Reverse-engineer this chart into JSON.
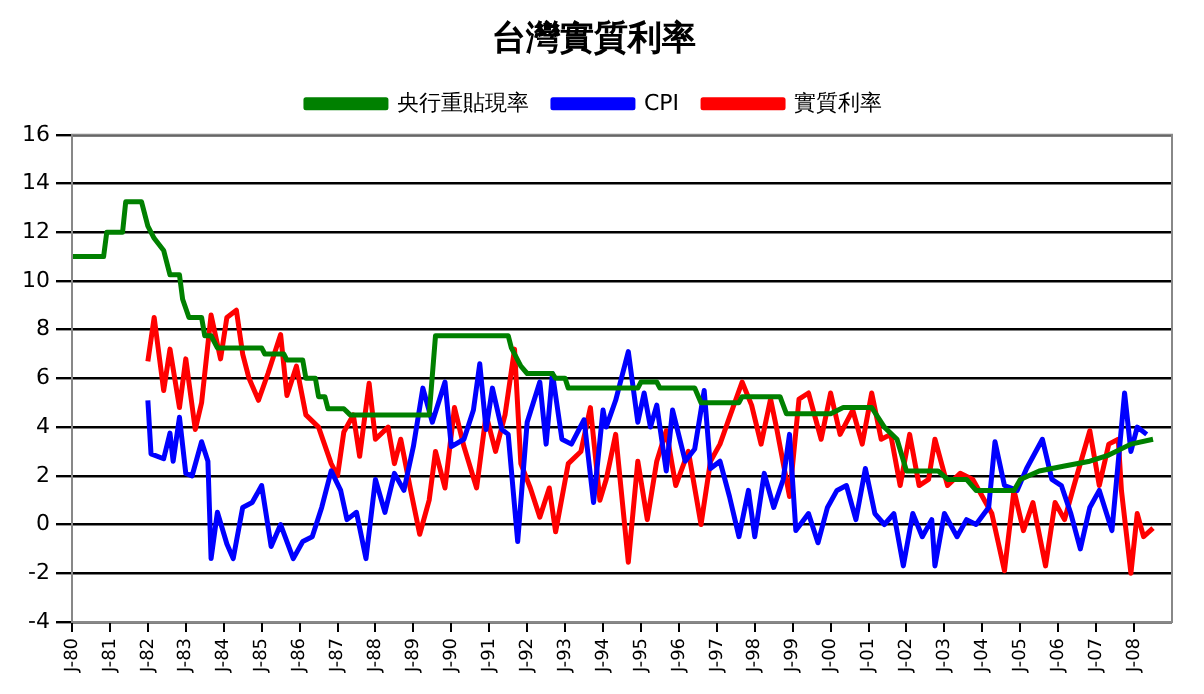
{
  "chart_data": {
    "type": "line",
    "title": "台灣實質利率",
    "legend": "top",
    "grid": "y",
    "marker": "none",
    "line_style": "solid",
    "xlim": [
      "1980-01",
      "2009-01"
    ],
    "ylim": [
      -4,
      16
    ],
    "yticks": [
      -4,
      -2,
      0,
      2,
      4,
      6,
      8,
      10,
      12,
      14,
      16
    ],
    "xticks": [
      {
        "value": "1980-01",
        "label": "J-80"
      },
      {
        "value": "1981-01",
        "label": "J-81"
      },
      {
        "value": "1982-01",
        "label": "J-82"
      },
      {
        "value": "1983-01",
        "label": "J-83"
      },
      {
        "value": "1984-01",
        "label": "J-84"
      },
      {
        "value": "1985-01",
        "label": "J-85"
      },
      {
        "value": "1986-01",
        "label": "J-86"
      },
      {
        "value": "1987-01",
        "label": "J-87"
      },
      {
        "value": "1988-01",
        "label": "J-88"
      },
      {
        "value": "1989-01",
        "label": "J-89"
      },
      {
        "value": "1990-01",
        "label": "J-90"
      },
      {
        "value": "1991-01",
        "label": "J-91"
      },
      {
        "value": "1992-01",
        "label": "J-92"
      },
      {
        "value": "1993-01",
        "label": "J-93"
      },
      {
        "value": "1994-01",
        "label": "J-94"
      },
      {
        "value": "1995-01",
        "label": "J-95"
      },
      {
        "value": "1996-01",
        "label": "J-96"
      },
      {
        "value": "1997-01",
        "label": "J-97"
      },
      {
        "value": "1998-01",
        "label": "J-98"
      },
      {
        "value": "1999-01",
        "label": "J-99"
      },
      {
        "value": "2000-01",
        "label": "J-00"
      },
      {
        "value": "2001-01",
        "label": "J-01"
      },
      {
        "value": "2002-01",
        "label": "J-02"
      },
      {
        "value": "2003-01",
        "label": "J-03"
      },
      {
        "value": "2004-01",
        "label": "J-04"
      },
      {
        "value": "2005-01",
        "label": "J-05"
      },
      {
        "value": "2006-01",
        "label": "J-06"
      },
      {
        "value": "2007-01",
        "label": "J-07"
      },
      {
        "value": "2008-01",
        "label": "J-08"
      }
    ],
    "series": [
      {
        "name": "央行重貼現率",
        "color": "#008000",
        "x": [
          "1980-01",
          "1980-11",
          "1980-12",
          "1981-05",
          "1981-06",
          "1981-11",
          "1982-01",
          "1982-03",
          "1982-06",
          "1982-08",
          "1982-11",
          "1982-12",
          "1983-02",
          "1983-06",
          "1983-07",
          "1983-09",
          "1983-11",
          "1985-01",
          "1985-02",
          "1985-08",
          "1985-09",
          "1986-02",
          "1986-03",
          "1986-06",
          "1986-07",
          "1986-09",
          "1986-10",
          "1987-03",
          "1987-05",
          "1989-06",
          "1989-08",
          "1991-07",
          "1991-08",
          "1991-11",
          "1992-01",
          "1992-09",
          "1992-10",
          "1993-01",
          "1993-02",
          "1994-12",
          "1995-01",
          "1995-06",
          "1995-07",
          "1996-06",
          "1996-08",
          "1997-08",
          "1997-09",
          "1998-09",
          "1998-11",
          "2000-01",
          "2000-05",
          "2001-02",
          "2001-06",
          "2001-10",
          "2002-01",
          "2002-11",
          "2003-02",
          "2003-08",
          "2003-11",
          "2004-11",
          "2005-01",
          "2005-07",
          "2006-03",
          "2006-11",
          "2007-05",
          "2007-12",
          "2008-07"
        ],
        "values": [
          11,
          11,
          12,
          12,
          13.25,
          13.25,
          12.25,
          11.75,
          11.25,
          10.25,
          10.25,
          9.25,
          8.5,
          8.5,
          7.75,
          7.75,
          7.25,
          7.25,
          7,
          7,
          6.75,
          6.75,
          6,
          6,
          5.25,
          5.25,
          4.75,
          4.75,
          4.5,
          4.5,
          7.75,
          7.75,
          7.25,
          6.5,
          6.2,
          6.2,
          6,
          6,
          5.6,
          5.6,
          5.85,
          5.85,
          5.6,
          5.6,
          5,
          5,
          5.25,
          5.25,
          4.55,
          4.55,
          4.8,
          4.8,
          4,
          3.5,
          2.2,
          2.2,
          1.85,
          1.85,
          1.4,
          1.4,
          1.85,
          2.2,
          2.4,
          2.6,
          2.85,
          3.3,
          3.5
        ]
      },
      {
        "name": "CPI",
        "color": "#0000ff",
        "x": [
          "1982-01",
          "1982-02",
          "1982-06",
          "1982-08",
          "1982-09",
          "1982-11",
          "1983-01",
          "1983-03",
          "1983-06",
          "1983-08",
          "1983-09",
          "1983-11",
          "1984-02",
          "1984-04",
          "1984-07",
          "1984-10",
          "1985-01",
          "1985-04",
          "1985-07",
          "1985-11",
          "1986-02",
          "1986-05",
          "1986-08",
          "1986-11",
          "1987-02",
          "1987-04",
          "1987-07",
          "1987-10",
          "1988-01",
          "1988-04",
          "1988-07",
          "1988-10",
          "1989-01",
          "1989-04",
          "1989-07",
          "1989-11",
          "1990-01",
          "1990-05",
          "1990-08",
          "1990-10",
          "1990-12",
          "1991-02",
          "1991-05",
          "1991-07",
          "1991-10",
          "1992-01",
          "1992-05",
          "1992-07",
          "1992-09",
          "1992-12",
          "1993-03",
          "1993-07",
          "1993-10",
          "1994-01",
          "1994-02",
          "1994-05",
          "1994-09",
          "1994-12",
          "1995-02",
          "1995-04",
          "1995-06",
          "1995-09",
          "1995-11",
          "1996-03",
          "1996-06",
          "1996-09",
          "1996-11",
          "1997-02",
          "1997-05",
          "1997-08",
          "1997-11",
          "1998-01",
          "1998-04",
          "1998-07",
          "1998-10",
          "1998-12",
          "1999-02",
          "1999-06",
          "1999-09",
          "1999-12",
          "2000-03",
          "2000-06",
          "2000-09",
          "2000-12",
          "2001-03",
          "2001-06",
          "2001-09",
          "2001-12",
          "2002-03",
          "2002-06",
          "2002-09",
          "2002-10",
          "2003-01",
          "2003-05",
          "2003-08",
          "2003-11",
          "2004-03",
          "2004-05",
          "2004-08",
          "2004-12",
          "2005-03",
          "2005-08",
          "2005-11",
          "2006-02",
          "2006-05",
          "2006-08",
          "2006-11",
          "2007-02",
          "2007-06",
          "2007-10",
          "2007-12",
          "2008-02",
          "2008-05"
        ],
        "values": [
          5.1,
          2.9,
          2.7,
          3.75,
          2.6,
          4.4,
          2.1,
          2,
          3.4,
          2.6,
          -1.4,
          0.5,
          -0.8,
          -1.4,
          0.7,
          0.9,
          1.6,
          -0.9,
          0,
          -1.4,
          -0.7,
          -0.5,
          0.7,
          2.2,
          1.4,
          0.2,
          0.5,
          -1.4,
          1.85,
          0.5,
          2.1,
          1.4,
          3.2,
          5.6,
          4.2,
          5.85,
          3.2,
          3.5,
          4.7,
          6.6,
          3.9,
          5.6,
          3.9,
          3.7,
          -0.7,
          4.2,
          5.85,
          3.3,
          6.2,
          3.5,
          3.3,
          4.3,
          0.9,
          4.7,
          4,
          5.1,
          7.1,
          4.2,
          5.4,
          4,
          4.9,
          2.2,
          4.7,
          2.6,
          3.1,
          5.5,
          2.3,
          2.6,
          1.15,
          -0.5,
          1.4,
          -0.5,
          2.1,
          0.7,
          1.85,
          3.7,
          -0.25,
          0.45,
          -0.75,
          0.7,
          1.4,
          1.6,
          0.2,
          2.3,
          0.45,
          0,
          0.45,
          -1.7,
          0.45,
          -0.5,
          0.2,
          -1.7,
          0.45,
          -0.5,
          0.2,
          0,
          0.7,
          3.4,
          1.6,
          1.4,
          2.3,
          3.5,
          1.85,
          1.6,
          0.45,
          -1,
          0.7,
          1.4,
          -0.25,
          5.4,
          3,
          4,
          3.7
        ]
      },
      {
        "name": "實質利率",
        "color": "#ff0000",
        "x": [
          "1982-01",
          "1982-03",
          "1982-06",
          "1982-08",
          "1982-11",
          "1983-01",
          "1983-04",
          "1983-06",
          "1983-09",
          "1983-12",
          "1984-02",
          "1984-05",
          "1984-07",
          "1984-09",
          "1984-12",
          "1985-03",
          "1985-07",
          "1985-09",
          "1985-12",
          "1986-03",
          "1986-07",
          "1986-11",
          "1987-01",
          "1987-03",
          "1987-06",
          "1987-08",
          "1987-11",
          "1988-01",
          "1988-05",
          "1988-07",
          "1988-09",
          "1988-12",
          "1989-03",
          "1989-06",
          "1989-08",
          "1989-11",
          "1990-02",
          "1990-05",
          "1990-09",
          "1990-12",
          "1991-03",
          "1991-06",
          "1991-09",
          "1991-11",
          "1992-02",
          "1992-05",
          "1992-08",
          "1992-10",
          "1993-02",
          "1993-06",
          "1993-09",
          "1993-12",
          "1994-02",
          "1994-05",
          "1994-09",
          "1994-12",
          "1995-03",
          "1995-06",
          "1995-09",
          "1995-12",
          "1996-04",
          "1996-08",
          "1996-11",
          "1997-02",
          "1997-05",
          "1997-09",
          "1997-12",
          "1998-03",
          "1998-06",
          "1998-08",
          "1998-12",
          "1999-03",
          "1999-06",
          "1999-10",
          "2000-01",
          "2000-04",
          "2000-08",
          "2000-11",
          "2001-02",
          "2001-05",
          "2001-08",
          "2001-11",
          "2002-02",
          "2002-05",
          "2002-08",
          "2002-10",
          "2003-02",
          "2003-06",
          "2003-10",
          "2004-01",
          "2004-04",
          "2004-08",
          "2004-11",
          "2005-02",
          "2005-05",
          "2005-09",
          "2005-12",
          "2006-03",
          "2006-06",
          "2006-11",
          "2007-02",
          "2007-05",
          "2007-08",
          "2007-09",
          "2007-12",
          "2008-02",
          "2008-04",
          "2008-07"
        ],
        "values": [
          6.7,
          8.5,
          5.5,
          7.2,
          4.8,
          6.8,
          3.9,
          5,
          8.6,
          6.8,
          8.5,
          8.8,
          7,
          6,
          5.1,
          6.2,
          7.8,
          5.3,
          6.5,
          4.5,
          4,
          2.5,
          2,
          3.8,
          4.5,
          2.8,
          5.8,
          3.5,
          4,
          2.5,
          3.5,
          1.5,
          -0.4,
          1,
          3,
          1.5,
          4.8,
          3.2,
          1.5,
          4.5,
          3,
          4.5,
          7.2,
          2.5,
          1.5,
          0.3,
          1.5,
          -0.3,
          2.5,
          3,
          4.8,
          1,
          1.85,
          3.7,
          -1.55,
          2.6,
          0.2,
          2.6,
          3.85,
          1.6,
          3,
          0,
          2.6,
          3.3,
          4.4,
          5.85,
          4.9,
          3.3,
          5.15,
          3.9,
          1.15,
          5.15,
          5.4,
          3.5,
          5.4,
          3.7,
          4.7,
          3.3,
          5.4,
          3.5,
          3.7,
          1.6,
          3.7,
          1.6,
          1.85,
          3.5,
          1.6,
          2.1,
          1.85,
          1.15,
          0.45,
          -1.9,
          1.4,
          -0.25,
          0.9,
          -1.7,
          0.9,
          0.2,
          1.6,
          3.85,
          1.6,
          3.3,
          3.5,
          1.4,
          -2,
          0.45,
          -0.5,
          -0.15
        ]
      }
    ]
  }
}
